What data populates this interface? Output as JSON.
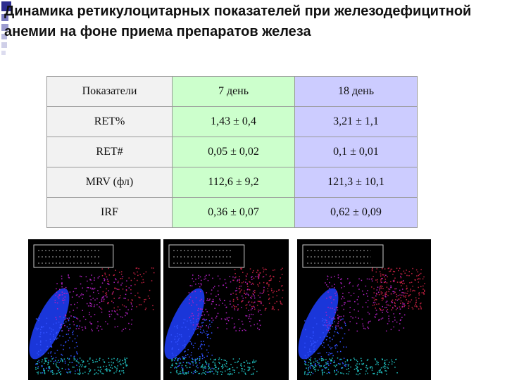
{
  "header": {
    "title": "Динамика ретикулоцитарных показателей при железодефицитной анемии на фоне приема препаратов железа"
  },
  "table": {
    "columns": [
      "Показатели",
      "7 день",
      "18 день"
    ],
    "rows": [
      [
        "RET%",
        "1,43 ± 0,4",
        "3,21 ± 1,1"
      ],
      [
        "RET#",
        "0,05 ± 0,02",
        "0,1 ± 0,01"
      ],
      [
        "MRV (фл)",
        "112,6 ± 9,2",
        "121,3 ± 10,1"
      ],
      [
        "IRF",
        "0,36 ± 0,07",
        "0,62 ± 0,09"
      ]
    ]
  }
}
